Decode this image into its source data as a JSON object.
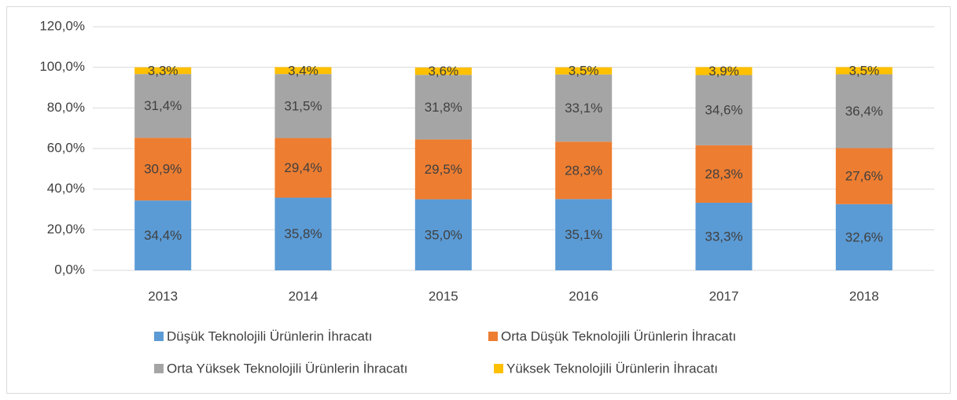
{
  "chart_data": {
    "type": "stacked_bar",
    "categories": [
      "2013",
      "2014",
      "2015",
      "2016",
      "2017",
      "2018"
    ],
    "series": [
      {
        "name": "Düşük Teknolojili Ürünlerin İhracatı",
        "color": "#5b9bd5",
        "values": [
          34.4,
          35.8,
          35.0,
          35.1,
          33.3,
          32.6
        ],
        "value_labels": [
          "34,4%",
          "35,8%",
          "35,0%",
          "35,1%",
          "33,3%",
          "32,6%"
        ]
      },
      {
        "name": "Orta Düşük Teknolojili Ürünlerin İhracatı",
        "color": "#ed7d31",
        "values": [
          30.9,
          29.4,
          29.5,
          28.3,
          28.3,
          27.6
        ],
        "value_labels": [
          "30,9%",
          "29,4%",
          "29,5%",
          "28,3%",
          "28,3%",
          "27,6%"
        ]
      },
      {
        "name": "Orta Yüksek Teknolojili Ürünlerin İhracatı",
        "color": "#a5a5a5",
        "values": [
          31.4,
          31.5,
          31.8,
          33.1,
          34.6,
          36.4
        ],
        "value_labels": [
          "31,4%",
          "31,5%",
          "31,8%",
          "33,1%",
          "34,6%",
          "36,4%"
        ]
      },
      {
        "name": "Yüksek Teknolojili Ürünlerin İhracatı",
        "color": "#ffc000",
        "values": [
          3.3,
          3.4,
          3.6,
          3.5,
          3.9,
          3.5
        ],
        "value_labels": [
          "3,3%",
          "3,4%",
          "3,6%",
          "3,5%",
          "3,9%",
          "3,5%"
        ]
      }
    ],
    "ylim": [
      0,
      120
    ],
    "yticks": [
      {
        "value": 0,
        "label": "0,0%"
      },
      {
        "value": 20,
        "label": "20,0%"
      },
      {
        "value": 40,
        "label": "40,0%"
      },
      {
        "value": 60,
        "label": "60,0%"
      },
      {
        "value": 80,
        "label": "80,0%"
      },
      {
        "value": 100,
        "label": "100,0%"
      },
      {
        "value": 120,
        "label": "120,0%"
      }
    ],
    "grid": true,
    "legend": "bottom"
  }
}
